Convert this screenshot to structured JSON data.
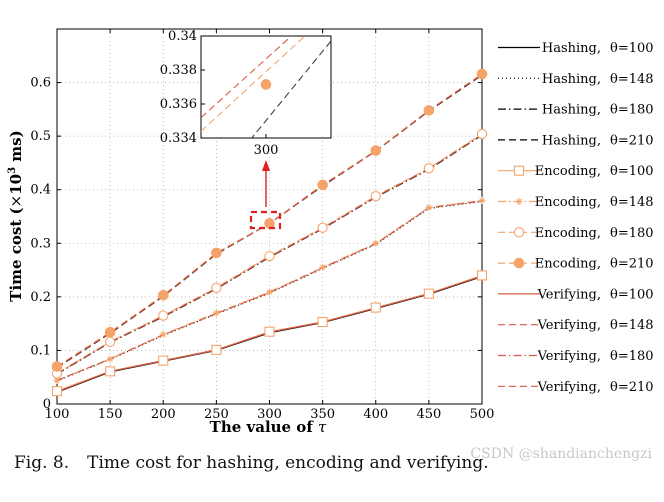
{
  "chart_data": {
    "type": "line",
    "x": [
      100,
      150,
      200,
      250,
      300,
      350,
      400,
      450,
      500
    ],
    "xlim": [
      100,
      500
    ],
    "ylim": [
      0,
      0.7
    ],
    "xticks": [
      "100",
      "150",
      "200",
      "250",
      "300",
      "350",
      "400",
      "450",
      "500"
    ],
    "yticks": [
      "0",
      "0.1",
      "0.2",
      "0.3",
      "0.4",
      "0.5",
      "0.6"
    ],
    "xlabel_prefix": "The value of",
    "xlabel_symbol": "τ",
    "ylabel_prefix": "Time cost (",
    "ylabel_times": "×",
    "ylabel_base": "10",
    "ylabel_exp": "3",
    "ylabel_suffix": " ms)",
    "grid": true,
    "series": [
      {
        "name": "Hashing, θ=100",
        "label": "Hashing,",
        "theta": "θ=100",
        "color": "#000000",
        "dash": "solid",
        "marker": "none",
        "values": [
          0.022,
          0.06,
          0.08,
          0.1,
          0.133,
          0.152,
          0.178,
          0.205,
          0.238
        ]
      },
      {
        "name": "Hashing, θ=148",
        "label": "Hashing,",
        "theta": "θ=148",
        "color": "#000000",
        "dash": "dotted",
        "marker": "none",
        "values": [
          0.043,
          0.083,
          0.128,
          0.168,
          0.207,
          0.253,
          0.298,
          0.365,
          0.378
        ]
      },
      {
        "name": "Hashing, θ=180",
        "label": "Hashing,",
        "theta": "θ=180",
        "color": "#000000",
        "dash": "dashdot",
        "marker": "none",
        "values": [
          0.056,
          0.115,
          0.163,
          0.215,
          0.274,
          0.327,
          0.386,
          0.438,
          0.502
        ]
      },
      {
        "name": "Hashing, θ=210",
        "label": "Hashing,",
        "theta": "θ=210",
        "color": "#000000",
        "dash": "dashed",
        "marker": "none",
        "values": [
          0.068,
          0.132,
          0.201,
          0.28,
          0.337,
          0.407,
          0.472,
          0.547,
          0.614
        ]
      },
      {
        "name": "Encoding, θ=100",
        "label": "Encoding,",
        "theta": "θ=100",
        "color": "#f4a46a",
        "dash": "solid",
        "marker": "square",
        "values": [
          0.024,
          0.061,
          0.081,
          0.101,
          0.135,
          0.153,
          0.18,
          0.206,
          0.24
        ]
      },
      {
        "name": "Encoding, θ=148",
        "label": "Encoding,",
        "theta": "θ=148",
        "color": "#f4a46a",
        "dash": "dashdot",
        "marker": "star",
        "values": [
          0.044,
          0.084,
          0.13,
          0.17,
          0.209,
          0.255,
          0.3,
          0.367,
          0.38
        ]
      },
      {
        "name": "Encoding, θ=180",
        "label": "Encoding,",
        "theta": "θ=180",
        "color": "#f4a46a",
        "dash": "dashed",
        "marker": "circle",
        "values": [
          0.057,
          0.116,
          0.165,
          0.217,
          0.276,
          0.329,
          0.388,
          0.44,
          0.504
        ]
      },
      {
        "name": "Encoding, θ=210",
        "label": "Encoding,",
        "theta": "θ=210",
        "color": "#f4a46a",
        "dash": "dashed",
        "marker": "filled-circle",
        "values": [
          0.07,
          0.134,
          0.203,
          0.282,
          0.337,
          0.409,
          0.473,
          0.548,
          0.616
        ]
      },
      {
        "name": "Verifying, θ=100",
        "label": "Verifying,",
        "theta": "θ=100",
        "color": "#d85b45",
        "dash": "solid",
        "marker": "none",
        "values": [
          0.023,
          0.061,
          0.081,
          0.101,
          0.134,
          0.153,
          0.179,
          0.206,
          0.239
        ]
      },
      {
        "name": "Verifying, θ=148",
        "label": "Verifying,",
        "theta": "θ=148",
        "color": "#d85b45",
        "dash": "dashed",
        "marker": "none",
        "values": [
          0.044,
          0.084,
          0.129,
          0.169,
          0.208,
          0.254,
          0.299,
          0.366,
          0.379
        ]
      },
      {
        "name": "Verifying, θ=180",
        "label": "Verifying,",
        "theta": "θ=180",
        "color": "#d85b45",
        "dash": "dashdot",
        "marker": "none",
        "values": [
          0.057,
          0.116,
          0.164,
          0.216,
          0.275,
          0.328,
          0.387,
          0.439,
          0.503
        ]
      },
      {
        "name": "Verifying, θ=210",
        "label": "Verifying,",
        "theta": "θ=210",
        "color": "#d85b45",
        "dash": "dashed",
        "marker": "none",
        "values": [
          0.069,
          0.133,
          0.202,
          0.281,
          0.337,
          0.408,
          0.472,
          0.548,
          0.615
        ]
      }
    ],
    "inset": {
      "xlim": [
        290,
        310
      ],
      "ylim": [
        0.334,
        0.34
      ],
      "yticks": [
        "0.334",
        "0.336",
        "0.338",
        "0.34"
      ],
      "xtick": "300",
      "segments": [
        {
          "series": "Hashing, θ=210",
          "color": "#404040",
          "x": [
            290,
            310
          ],
          "y": [
            0.33035,
            0.3397
          ]
        },
        {
          "series": "Encoding, θ=210",
          "color": "#f4a46a",
          "x": [
            290,
            310
          ],
          "y": [
            0.3344,
            0.3414
          ]
        },
        {
          "series": "Verifying, θ=210",
          "color": "#d85b45",
          "x": [
            290,
            310
          ],
          "y": [
            0.3352,
            0.3421
          ]
        }
      ],
      "point": {
        "series": "Encoding, θ=210",
        "x": 300,
        "y": 0.33715
      }
    },
    "caption_label": "Fig. 8.",
    "caption_text": "Time cost for hashing, encoding and verifying."
  },
  "watermark": "CSDN @shandianchengzi"
}
